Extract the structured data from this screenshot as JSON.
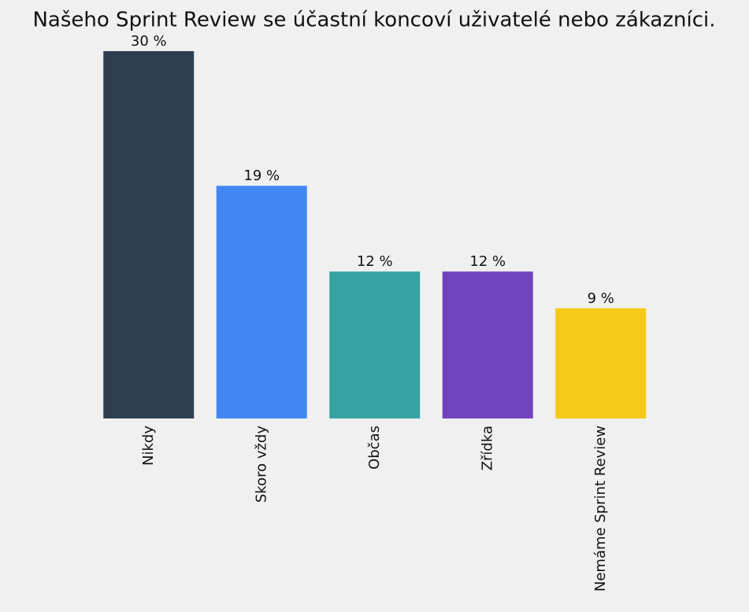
{
  "chart_data": {
    "type": "bar",
    "title": "Našeho Sprint Review se účastní koncoví uživatelé nebo zákazníci.",
    "categories": [
      "Nikdy",
      "Skoro vždy",
      "Občas",
      "Zřídka",
      "Nemáme Sprint Review"
    ],
    "values": [
      30,
      19,
      12,
      12,
      9
    ],
    "value_labels": [
      "30 %",
      "19 %",
      "12 %",
      "12 %",
      "9 %"
    ],
    "colors": [
      "#2e3e50",
      "#4286f4",
      "#36a3a3",
      "#7243c0",
      "#f5c918"
    ],
    "ylim": [
      0,
      30
    ]
  }
}
